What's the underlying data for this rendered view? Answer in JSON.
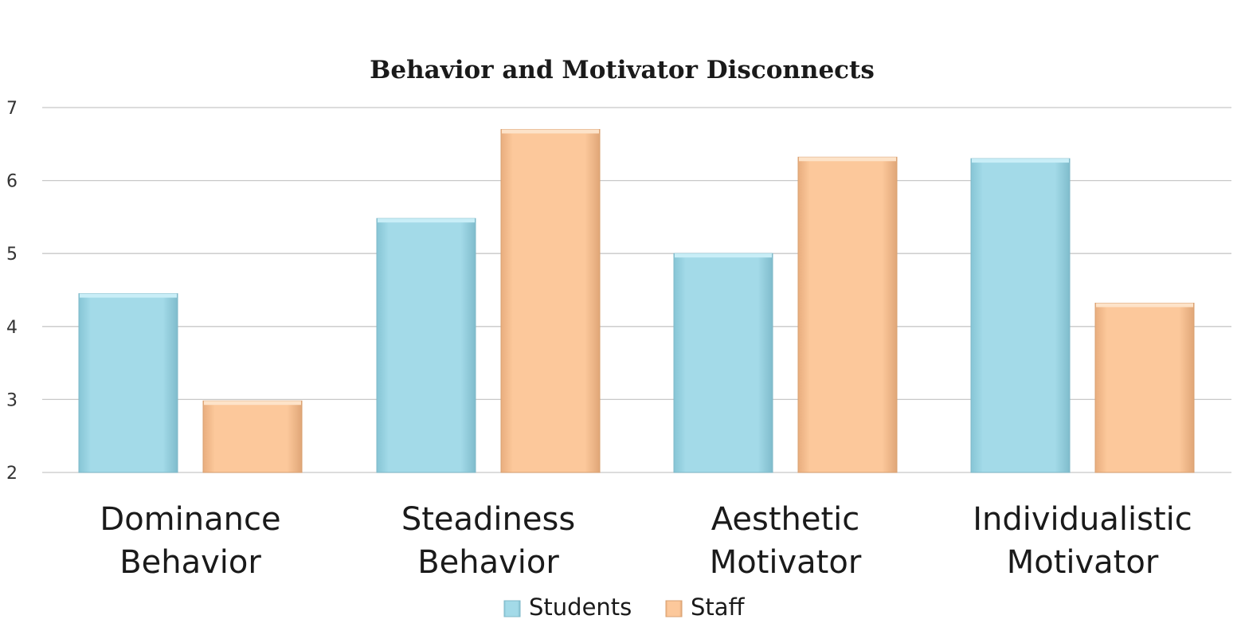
{
  "chart_data": {
    "type": "bar",
    "title": "Behavior and Motivator Disconnects",
    "categories": [
      [
        "Dominance",
        "Behavior"
      ],
      [
        "Steadiness",
        "Behavior"
      ],
      [
        "Aesthetic",
        "Motivator"
      ],
      [
        "Individualistic",
        "Motivator"
      ]
    ],
    "series": [
      {
        "name": "Students",
        "values": [
          4.45,
          5.48,
          5.0,
          6.3
        ],
        "color": "#9fd8e6"
      },
      {
        "name": "Staff",
        "values": [
          2.98,
          6.7,
          6.32,
          4.32
        ],
        "color": "#f9c597"
      }
    ],
    "ylim": [
      2,
      7
    ],
    "yticks": [
      2,
      3,
      4,
      5,
      6,
      7
    ],
    "grid": true,
    "legend": "bottom",
    "xlabel": "",
    "ylabel": ""
  }
}
